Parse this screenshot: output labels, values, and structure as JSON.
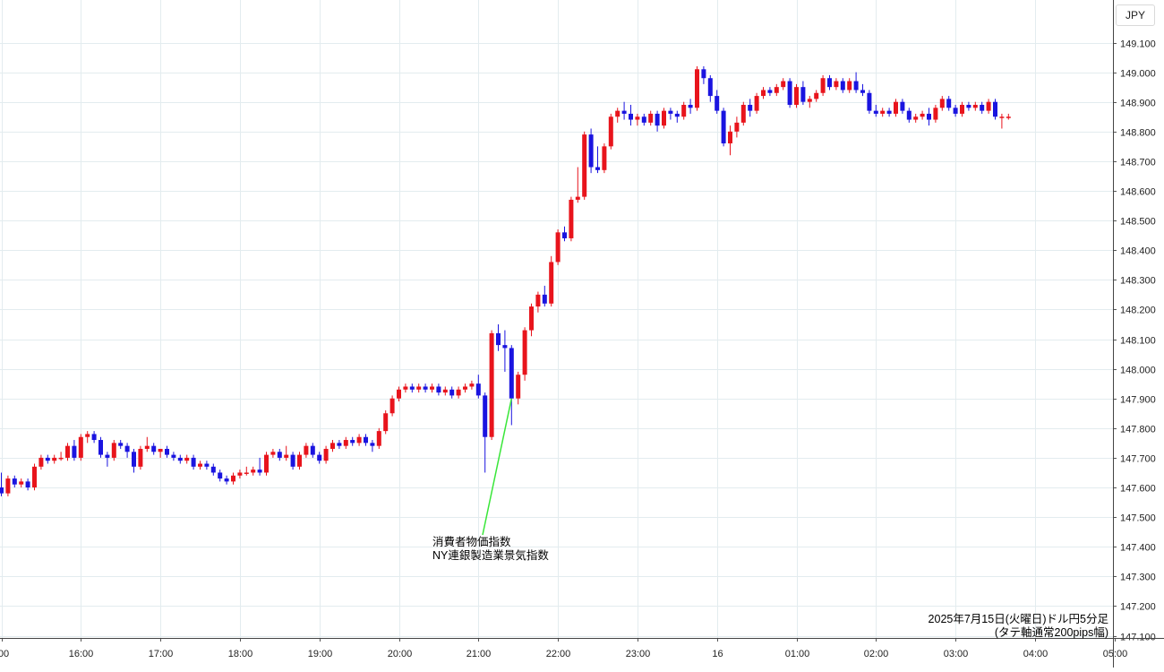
{
  "currency": "JPY",
  "caption": {
    "line1": "2025年7月15日(火曜日)ドル円5分足",
    "line2": "(タテ軸通常200pips幅)"
  },
  "annotation": {
    "line1": "消費者物価指数",
    "line2": "NY連銀製造業景気指数"
  },
  "colors": {
    "up": "#e8141c",
    "down": "#1a14e0",
    "grid": "#e3ecef",
    "annotation_line": "#39e639"
  },
  "chart_data": {
    "type": "candlestick",
    "grid": true,
    "ylim": [
      147.08,
      149.2
    ],
    "y_ticks": [
      "147.100",
      "147.200",
      "147.300",
      "147.400",
      "147.500",
      "147.600",
      "147.700",
      "147.800",
      "147.900",
      "148.000",
      "148.100",
      "148.200",
      "148.300",
      "148.400",
      "148.500",
      "148.600",
      "148.700",
      "148.800",
      "148.900",
      "149.000",
      "149.100"
    ],
    "x_ticks": [
      {
        "label": ":00",
        "t": 0
      },
      {
        "label": "16:00",
        "t": 12
      },
      {
        "label": "17:00",
        "t": 24
      },
      {
        "label": "18:00",
        "t": 36
      },
      {
        "label": "19:00",
        "t": 48
      },
      {
        "label": "20:00",
        "t": 60
      },
      {
        "label": "21:00",
        "t": 72
      },
      {
        "label": "22:00",
        "t": 84
      },
      {
        "label": "23:00",
        "t": 96
      },
      {
        "label": "16",
        "t": 108
      },
      {
        "label": "01:00",
        "t": 120
      },
      {
        "label": "02:00",
        "t": 132
      },
      {
        "label": "03:00",
        "t": 144
      },
      {
        "label": "04:00",
        "t": 156
      },
      {
        "label": "05:00",
        "t": 168
      }
    ],
    "annotation_bar": 78,
    "candles": [
      [
        147.6,
        147.65,
        147.57,
        147.58
      ],
      [
        147.58,
        147.64,
        147.57,
        147.63
      ],
      [
        147.63,
        147.64,
        147.6,
        147.61
      ],
      [
        147.61,
        147.63,
        147.6,
        147.62
      ],
      [
        147.62,
        147.63,
        147.59,
        147.6
      ],
      [
        147.6,
        147.68,
        147.59,
        147.67
      ],
      [
        147.67,
        147.71,
        147.66,
        147.7
      ],
      [
        147.7,
        147.71,
        147.68,
        147.69
      ],
      [
        147.69,
        147.71,
        147.68,
        147.7
      ],
      [
        147.7,
        147.72,
        147.69,
        147.7
      ],
      [
        147.7,
        147.75,
        147.69,
        147.74
      ],
      [
        147.74,
        147.76,
        147.69,
        147.7
      ],
      [
        147.7,
        147.78,
        147.69,
        147.77
      ],
      [
        147.77,
        147.79,
        147.75,
        147.78
      ],
      [
        147.78,
        147.79,
        147.75,
        147.76
      ],
      [
        147.76,
        147.77,
        147.7,
        147.71
      ],
      [
        147.71,
        147.72,
        147.67,
        147.7
      ],
      [
        147.7,
        147.76,
        147.69,
        147.75
      ],
      [
        147.75,
        147.76,
        147.73,
        147.74
      ],
      [
        147.74,
        147.75,
        147.7,
        147.72
      ],
      [
        147.72,
        147.73,
        147.65,
        147.67
      ],
      [
        147.67,
        147.74,
        147.66,
        147.73
      ],
      [
        147.73,
        147.77,
        147.72,
        147.74
      ],
      [
        147.74,
        147.75,
        147.71,
        147.72
      ],
      [
        147.72,
        147.73,
        147.7,
        147.73
      ],
      [
        147.73,
        147.74,
        147.7,
        147.71
      ],
      [
        147.71,
        147.72,
        147.69,
        147.7
      ],
      [
        147.7,
        147.71,
        147.68,
        147.69
      ],
      [
        147.69,
        147.71,
        147.68,
        147.7
      ],
      [
        147.7,
        147.71,
        147.66,
        147.67
      ],
      [
        147.67,
        147.69,
        147.66,
        147.68
      ],
      [
        147.68,
        147.69,
        147.66,
        147.67
      ],
      [
        147.67,
        147.68,
        147.64,
        147.65
      ],
      [
        147.65,
        147.66,
        147.62,
        147.63
      ],
      [
        147.63,
        147.64,
        147.61,
        147.62
      ],
      [
        147.62,
        147.65,
        147.61,
        147.64
      ],
      [
        147.64,
        147.66,
        147.63,
        147.65
      ],
      [
        147.65,
        147.67,
        147.64,
        147.65
      ],
      [
        147.65,
        147.67,
        147.64,
        147.66
      ],
      [
        147.66,
        147.7,
        147.64,
        147.65
      ],
      [
        147.65,
        147.72,
        147.64,
        147.71
      ],
      [
        147.71,
        147.73,
        147.7,
        147.72
      ],
      [
        147.72,
        147.73,
        147.69,
        147.7
      ],
      [
        147.7,
        147.74,
        147.69,
        147.71
      ],
      [
        147.71,
        147.72,
        147.66,
        147.67
      ],
      [
        147.67,
        147.72,
        147.66,
        147.71
      ],
      [
        147.71,
        147.75,
        147.7,
        147.74
      ],
      [
        147.74,
        147.75,
        147.7,
        147.71
      ],
      [
        147.71,
        147.72,
        147.68,
        147.69
      ],
      [
        147.69,
        147.74,
        147.68,
        147.73
      ],
      [
        147.73,
        147.76,
        147.72,
        147.75
      ],
      [
        147.75,
        147.76,
        147.73,
        147.74
      ],
      [
        147.74,
        147.77,
        147.73,
        147.76
      ],
      [
        147.76,
        147.77,
        147.74,
        147.75
      ],
      [
        147.75,
        147.78,
        147.74,
        147.77
      ],
      [
        147.77,
        147.78,
        147.74,
        147.75
      ],
      [
        147.75,
        147.76,
        147.72,
        147.74
      ],
      [
        147.74,
        147.8,
        147.73,
        147.79
      ],
      [
        147.79,
        147.86,
        147.78,
        147.85
      ],
      [
        147.85,
        147.91,
        147.84,
        147.9
      ],
      [
        147.9,
        147.94,
        147.89,
        147.93
      ],
      [
        147.93,
        147.95,
        147.92,
        147.94
      ],
      [
        147.94,
        147.95,
        147.92,
        147.93
      ],
      [
        147.93,
        147.95,
        147.92,
        147.94
      ],
      [
        147.94,
        147.95,
        147.92,
        147.93
      ],
      [
        147.93,
        147.95,
        147.92,
        147.94
      ],
      [
        147.94,
        147.95,
        147.91,
        147.92
      ],
      [
        147.92,
        147.94,
        147.91,
        147.93
      ],
      [
        147.93,
        147.94,
        147.9,
        147.91
      ],
      [
        147.91,
        147.94,
        147.9,
        147.93
      ],
      [
        147.93,
        147.95,
        147.92,
        147.94
      ],
      [
        147.94,
        147.96,
        147.93,
        147.95
      ],
      [
        147.95,
        147.98,
        147.9,
        147.91
      ],
      [
        147.91,
        147.92,
        147.65,
        147.77
      ],
      [
        147.77,
        148.13,
        147.76,
        148.12
      ],
      [
        148.12,
        148.15,
        148.06,
        148.08
      ],
      [
        148.08,
        148.13,
        147.99,
        148.07
      ],
      [
        148.07,
        148.08,
        147.81,
        147.9
      ],
      [
        147.9,
        147.99,
        147.88,
        147.98
      ],
      [
        147.98,
        148.14,
        147.96,
        148.13
      ],
      [
        148.13,
        148.22,
        148.11,
        148.21
      ],
      [
        148.21,
        148.26,
        148.19,
        148.25
      ],
      [
        148.25,
        148.28,
        148.21,
        148.22
      ],
      [
        148.22,
        148.38,
        148.21,
        148.36
      ],
      [
        148.36,
        148.47,
        148.35,
        148.46
      ],
      [
        148.46,
        148.48,
        148.43,
        148.44
      ],
      [
        148.44,
        148.58,
        148.43,
        148.57
      ],
      [
        148.57,
        148.68,
        148.56,
        148.58
      ],
      [
        148.58,
        148.8,
        148.57,
        148.79
      ],
      [
        148.79,
        148.81,
        148.66,
        148.68
      ],
      [
        148.68,
        148.75,
        148.66,
        148.67
      ],
      [
        148.67,
        148.76,
        148.66,
        148.75
      ],
      [
        148.75,
        148.86,
        148.74,
        148.85
      ],
      [
        148.85,
        148.88,
        148.83,
        148.87
      ],
      [
        148.87,
        148.9,
        148.84,
        148.86
      ],
      [
        148.86,
        148.89,
        148.82,
        148.84
      ],
      [
        148.84,
        148.86,
        148.82,
        148.85
      ],
      [
        148.85,
        148.86,
        148.82,
        148.83
      ],
      [
        148.83,
        148.87,
        148.82,
        148.86
      ],
      [
        148.86,
        148.87,
        148.8,
        148.82
      ],
      [
        148.82,
        148.88,
        148.81,
        148.87
      ],
      [
        148.87,
        148.88,
        148.84,
        148.86
      ],
      [
        148.86,
        148.87,
        148.83,
        148.85
      ],
      [
        148.85,
        148.9,
        148.84,
        148.89
      ],
      [
        148.89,
        148.91,
        148.86,
        148.88
      ],
      [
        148.88,
        149.02,
        148.87,
        149.01
      ],
      [
        149.01,
        149.02,
        148.96,
        148.98
      ],
      [
        148.98,
        148.99,
        148.9,
        148.92
      ],
      [
        148.92,
        148.94,
        148.86,
        148.87
      ],
      [
        148.87,
        148.88,
        148.75,
        148.76
      ],
      [
        148.76,
        148.82,
        148.72,
        148.8
      ],
      [
        148.8,
        148.85,
        148.78,
        148.83
      ],
      [
        148.83,
        148.9,
        148.82,
        148.89
      ],
      [
        148.89,
        148.91,
        148.85,
        148.87
      ],
      [
        148.87,
        148.93,
        148.86,
        148.92
      ],
      [
        148.92,
        148.95,
        148.91,
        148.94
      ],
      [
        148.94,
        148.95,
        148.92,
        148.93
      ],
      [
        148.93,
        148.96,
        148.92,
        148.95
      ],
      [
        148.95,
        148.98,
        148.94,
        148.97
      ],
      [
        148.97,
        148.98,
        148.88,
        148.89
      ],
      [
        148.89,
        148.96,
        148.88,
        148.95
      ],
      [
        148.95,
        148.97,
        148.89,
        148.9
      ],
      [
        148.9,
        148.92,
        148.88,
        148.91
      ],
      [
        148.91,
        148.94,
        148.9,
        148.93
      ],
      [
        148.93,
        148.99,
        148.92,
        148.98
      ],
      [
        148.98,
        148.99,
        148.94,
        148.95
      ],
      [
        148.95,
        148.98,
        148.94,
        148.97
      ],
      [
        148.97,
        148.98,
        148.93,
        148.94
      ],
      [
        148.94,
        148.98,
        148.93,
        148.97
      ],
      [
        148.97,
        149.0,
        148.93,
        148.94
      ],
      [
        148.94,
        148.96,
        148.92,
        148.93
      ],
      [
        148.93,
        148.94,
        148.86,
        148.87
      ],
      [
        148.87,
        148.89,
        148.85,
        148.86
      ],
      [
        148.86,
        148.88,
        148.85,
        148.87
      ],
      [
        148.87,
        148.88,
        148.85,
        148.86
      ],
      [
        148.86,
        148.91,
        148.85,
        148.9
      ],
      [
        148.9,
        148.91,
        148.86,
        148.87
      ],
      [
        148.87,
        148.88,
        148.83,
        148.84
      ],
      [
        148.84,
        148.86,
        148.83,
        148.85
      ],
      [
        148.85,
        148.87,
        148.84,
        148.86
      ],
      [
        148.86,
        148.88,
        148.82,
        148.84
      ],
      [
        148.84,
        148.89,
        148.83,
        148.88
      ],
      [
        148.88,
        148.92,
        148.87,
        148.91
      ],
      [
        148.91,
        148.92,
        148.87,
        148.88
      ],
      [
        148.88,
        148.89,
        148.85,
        148.86
      ],
      [
        148.86,
        148.9,
        148.85,
        148.89
      ],
      [
        148.89,
        148.9,
        148.87,
        148.88
      ],
      [
        148.88,
        148.9,
        148.87,
        148.89
      ],
      [
        148.89,
        148.9,
        148.86,
        148.87
      ],
      [
        148.87,
        148.91,
        148.86,
        148.9
      ],
      [
        148.9,
        148.91,
        148.84,
        148.85
      ],
      [
        148.85,
        148.86,
        148.81,
        148.85
      ],
      [
        148.85,
        148.86,
        148.84,
        148.85
      ]
    ]
  }
}
